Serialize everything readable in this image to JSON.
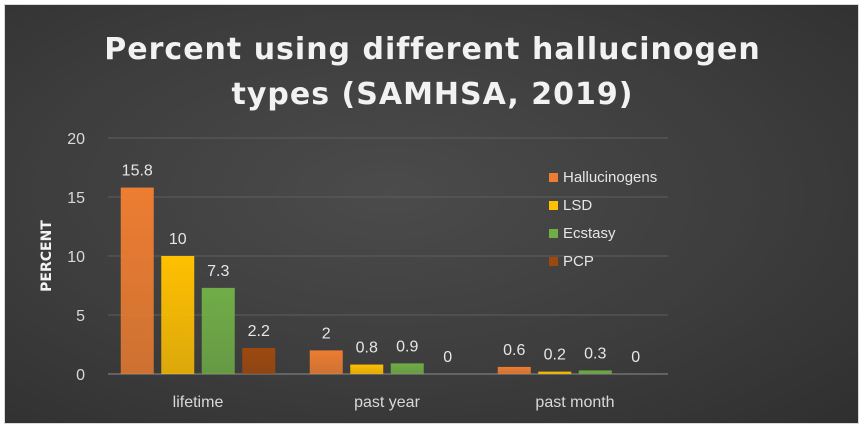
{
  "chart_data": {
    "type": "bar",
    "title_line1": "Percent using different hallucinogen",
    "title_line2": "types (SAMHSA, 2019)",
    "ylabel": "PERCENT",
    "xlabel": "",
    "ylim": [
      0,
      20
    ],
    "yticks": [
      "0",
      "5",
      "10",
      "15",
      "20"
    ],
    "grid": true,
    "legend_position": "right",
    "categories": [
      "lifetime",
      "past year",
      "past month"
    ],
    "series": [
      {
        "name": "Hallucinogens",
        "color": "#ed7d31",
        "values": [
          15.8,
          2,
          0.6
        ],
        "labels": [
          "15.8",
          "2",
          "0.6"
        ]
      },
      {
        "name": "LSD",
        "color": "#ffc000",
        "values": [
          10,
          0.8,
          0.2
        ],
        "labels": [
          "10",
          "0.8",
          "0.2"
        ]
      },
      {
        "name": "Ecstasy",
        "color": "#70ad47",
        "values": [
          7.3,
          0.9,
          0.3
        ],
        "labels": [
          "7.3",
          "0.9",
          "0.3"
        ]
      },
      {
        "name": "PCP",
        "color": "#9e480e",
        "values": [
          2.2,
          0,
          0
        ],
        "labels": [
          "2.2",
          "0",
          "0"
        ]
      }
    ]
  }
}
